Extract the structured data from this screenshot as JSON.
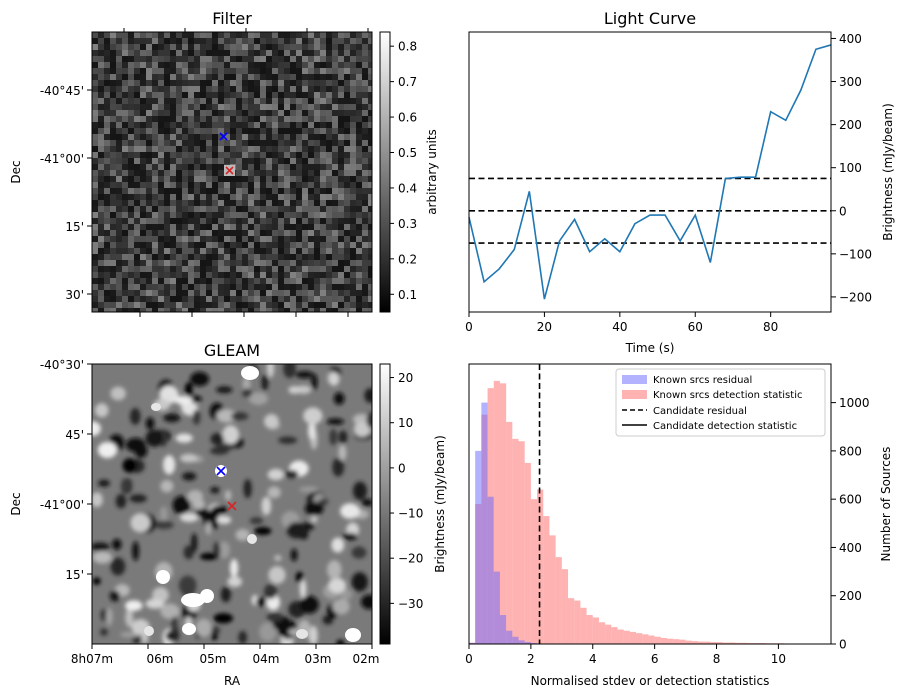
{
  "figure": {
    "panels": {
      "filter": {
        "title": "Filter",
        "ylabel": "Dec",
        "yticks": [
          "-40°45'",
          "-41°00'",
          "15'",
          "30'"
        ],
        "colorbar": {
          "label": "arbitrary units",
          "range": [
            0.05,
            0.84
          ],
          "ticks": [
            "0.1",
            "0.2",
            "0.3",
            "0.4",
            "0.5",
            "0.6",
            "0.7",
            "0.8"
          ]
        }
      },
      "gleam": {
        "title": "GLEAM",
        "ylabel": "Dec",
        "xlabel": "RA",
        "yticks": [
          "-40°30'",
          "45'",
          "-41°00'",
          "15'"
        ],
        "xticks": [
          "8h07m",
          "06m",
          "05m",
          "04m",
          "03m",
          "02m"
        ],
        "colorbar": {
          "label": "Brightness (mJy/beam)",
          "range": [
            -39,
            23
          ],
          "ticks": [
            "20",
            "10",
            "0",
            "−10",
            "−20",
            "−30"
          ]
        }
      }
    },
    "markers": {
      "blue_color": "#0000ff",
      "red_color": "#d62728"
    }
  },
  "chart_data": [
    {
      "type": "line",
      "title": "Light Curve",
      "xlabel": "Time (s)",
      "ylabel": "Brightness (mJy/beam)",
      "xlim": [
        0,
        96
      ],
      "ylim": [
        -235,
        415
      ],
      "xticks": [
        "0",
        "20",
        "40",
        "60",
        "80"
      ],
      "yticks": [
        "400",
        "300",
        "200",
        "100",
        "0",
        "−100",
        "−200"
      ],
      "series": [
        {
          "color": "#1f77b4",
          "x": [
            0,
            4,
            8,
            12,
            16,
            20,
            24,
            28,
            32,
            36,
            40,
            44,
            48,
            52,
            56,
            60,
            64,
            68,
            72,
            76,
            80,
            84,
            88,
            92,
            96
          ],
          "y": [
            -15,
            -165,
            -135,
            -90,
            45,
            -205,
            -70,
            -20,
            -95,
            -65,
            -95,
            -30,
            -10,
            -10,
            -70,
            -10,
            -120,
            75,
            78,
            78,
            230,
            210,
            280,
            375,
            385
          ]
        }
      ],
      "hlines": [
        {
          "y": 75,
          "style": "dashed",
          "color": "#000000"
        },
        {
          "y": 0,
          "style": "dashed",
          "color": "#000000"
        },
        {
          "y": -75,
          "style": "dashed",
          "color": "#000000"
        }
      ]
    },
    {
      "type": "bar",
      "subtype": "histogram",
      "xlabel": "Normalised stdev or detection statistics",
      "ylabel_right": "Number of Sources",
      "xlim": [
        0,
        11.7
      ],
      "ylim": [
        0,
        1160
      ],
      "xticks": [
        "0",
        "2",
        "4",
        "6",
        "8",
        "10"
      ],
      "yticks": [
        "0",
        "200",
        "400",
        "600",
        "800",
        "1000"
      ],
      "legend": {
        "placement": "top-right",
        "entries": [
          "Known srcs residual",
          "Known srcs detection statistic",
          "Candidate residual",
          "Candidate detection statistic"
        ]
      },
      "bin_width": 0.2,
      "series": [
        {
          "name": "Known srcs residual",
          "color": "#6666ff",
          "x_start": 0.0,
          "values": [
            5,
            800,
            1000,
            610,
            300,
            120,
            55,
            30,
            15,
            8,
            4,
            2
          ]
        },
        {
          "name": "Known srcs detection statistic",
          "color": "#ff7f7f",
          "x_start": 0.0,
          "values": [
            5,
            580,
            950,
            1060,
            1090,
            1080,
            920,
            850,
            840,
            750,
            600,
            640,
            530,
            450,
            360,
            310,
            190,
            180,
            150,
            120,
            110,
            90,
            80,
            70,
            60,
            55,
            50,
            45,
            40,
            35,
            30,
            25,
            22,
            20,
            18,
            14,
            12,
            10,
            10,
            8,
            8,
            6,
            6,
            5,
            5,
            4,
            4,
            4,
            3,
            3,
            3,
            2,
            2,
            2,
            2,
            2,
            1,
            1
          ]
        }
      ],
      "vlines": [
        {
          "name": "Candidate residual",
          "x": 2.28,
          "style": "dashed",
          "color": "#000000"
        }
      ]
    }
  ]
}
